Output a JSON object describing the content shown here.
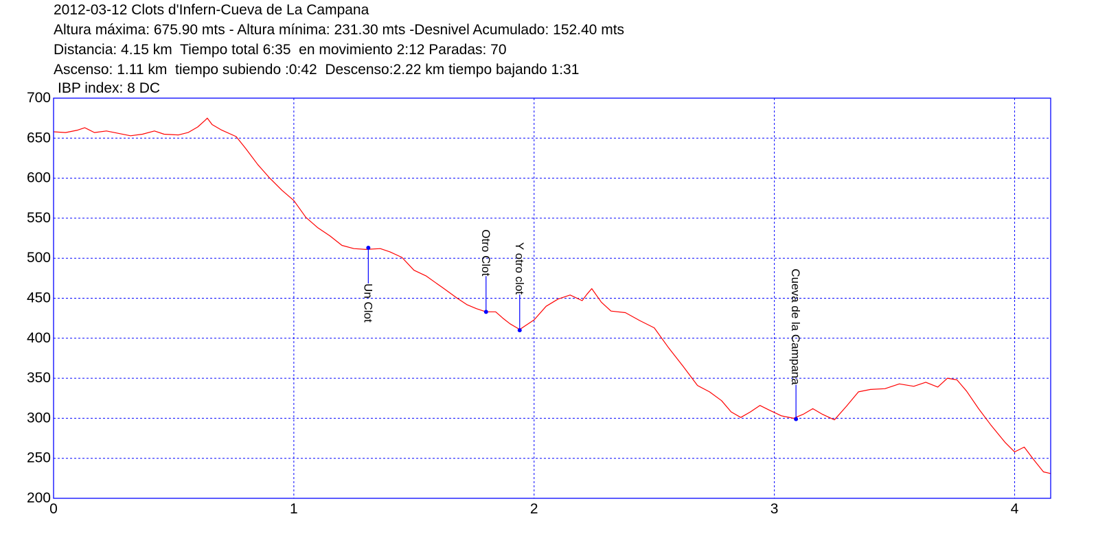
{
  "header": {
    "line1": "2012-03-12 Clots d'Infern-Cueva de La Campana",
    "line2": "Altura máxima: 675.90 mts - Altura mínima: 231.30 mts -Desnivel Acumulado: 152.40 mts",
    "line3": "Distancia: 4.15 km  Tiempo total 6:35  en movimiento 2:12 Paradas: 70",
    "line4": "Ascenso: 1.11 km  tiempo subiendo :0:42  Descenso:2.22 km tiempo bajando 1:31",
    "line5": "IBP index: 8 DC"
  },
  "chart_data": {
    "type": "line",
    "xlim": [
      0,
      4.15
    ],
    "ylim": [
      200,
      700
    ],
    "x_ticks": [
      0,
      1,
      2,
      3,
      4
    ],
    "y_ticks": [
      200,
      250,
      300,
      350,
      400,
      450,
      500,
      550,
      600,
      650,
      700
    ],
    "grid": true,
    "colors": {
      "line": "#ff0000",
      "frame": "#0000ff",
      "grid": "#0000ff",
      "waypoint": "#0000ff"
    },
    "series": [
      {
        "points": [
          [
            0.0,
            658
          ],
          [
            0.05,
            657
          ],
          [
            0.1,
            660
          ],
          [
            0.13,
            663
          ],
          [
            0.17,
            657
          ],
          [
            0.22,
            659
          ],
          [
            0.27,
            656
          ],
          [
            0.32,
            653
          ],
          [
            0.37,
            655
          ],
          [
            0.42,
            659
          ],
          [
            0.46,
            655
          ],
          [
            0.52,
            654
          ],
          [
            0.56,
            657
          ],
          [
            0.6,
            664
          ],
          [
            0.63,
            672
          ],
          [
            0.64,
            675
          ],
          [
            0.66,
            667
          ],
          [
            0.7,
            660
          ],
          [
            0.76,
            652
          ],
          [
            0.8,
            637
          ],
          [
            0.85,
            617
          ],
          [
            0.9,
            600
          ],
          [
            0.95,
            585
          ],
          [
            1.0,
            572
          ],
          [
            1.05,
            551
          ],
          [
            1.1,
            538
          ],
          [
            1.15,
            528
          ],
          [
            1.2,
            516
          ],
          [
            1.25,
            512
          ],
          [
            1.3,
            511
          ],
          [
            1.36,
            512
          ],
          [
            1.4,
            508
          ],
          [
            1.45,
            501
          ],
          [
            1.5,
            485
          ],
          [
            1.55,
            478
          ],
          [
            1.62,
            463
          ],
          [
            1.68,
            450
          ],
          [
            1.72,
            442
          ],
          [
            1.76,
            437
          ],
          [
            1.8,
            433
          ],
          [
            1.84,
            433
          ],
          [
            1.87,
            425
          ],
          [
            1.9,
            418
          ],
          [
            1.94,
            411
          ],
          [
            1.97,
            417
          ],
          [
            2.0,
            423
          ],
          [
            2.05,
            440
          ],
          [
            2.1,
            449
          ],
          [
            2.15,
            454
          ],
          [
            2.2,
            447
          ],
          [
            2.22,
            455
          ],
          [
            2.24,
            462
          ],
          [
            2.28,
            445
          ],
          [
            2.32,
            434
          ],
          [
            2.38,
            432
          ],
          [
            2.44,
            422
          ],
          [
            2.5,
            413
          ],
          [
            2.56,
            388
          ],
          [
            2.62,
            365
          ],
          [
            2.68,
            341
          ],
          [
            2.73,
            333
          ],
          [
            2.78,
            322
          ],
          [
            2.82,
            308
          ],
          [
            2.86,
            301
          ],
          [
            2.9,
            308
          ],
          [
            2.94,
            316
          ],
          [
            2.98,
            310
          ],
          [
            3.03,
            303
          ],
          [
            3.08,
            300
          ],
          [
            3.12,
            305
          ],
          [
            3.16,
            312
          ],
          [
            3.2,
            305
          ],
          [
            3.25,
            298
          ],
          [
            3.3,
            315
          ],
          [
            3.35,
            333
          ],
          [
            3.4,
            336
          ],
          [
            3.46,
            337
          ],
          [
            3.52,
            343
          ],
          [
            3.58,
            340
          ],
          [
            3.63,
            345
          ],
          [
            3.68,
            339
          ],
          [
            3.72,
            350
          ],
          [
            3.76,
            348
          ],
          [
            3.8,
            334
          ],
          [
            3.85,
            312
          ],
          [
            3.9,
            292
          ],
          [
            3.96,
            270
          ],
          [
            4.0,
            258
          ],
          [
            4.04,
            264
          ],
          [
            4.08,
            248
          ],
          [
            4.12,
            233
          ],
          [
            4.15,
            231
          ]
        ]
      }
    ],
    "waypoints": [
      {
        "label": "Un Clot",
        "x": 1.31,
        "y": 513,
        "label_side": "below"
      },
      {
        "label": "Otro Clot",
        "x": 1.8,
        "y": 433,
        "label_side": "above"
      },
      {
        "label": "Y otro clot",
        "x": 1.94,
        "y": 410,
        "label_side": "above"
      },
      {
        "label": "Cueva de la Campana",
        "x": 3.09,
        "y": 299,
        "label_side": "above"
      }
    ]
  }
}
